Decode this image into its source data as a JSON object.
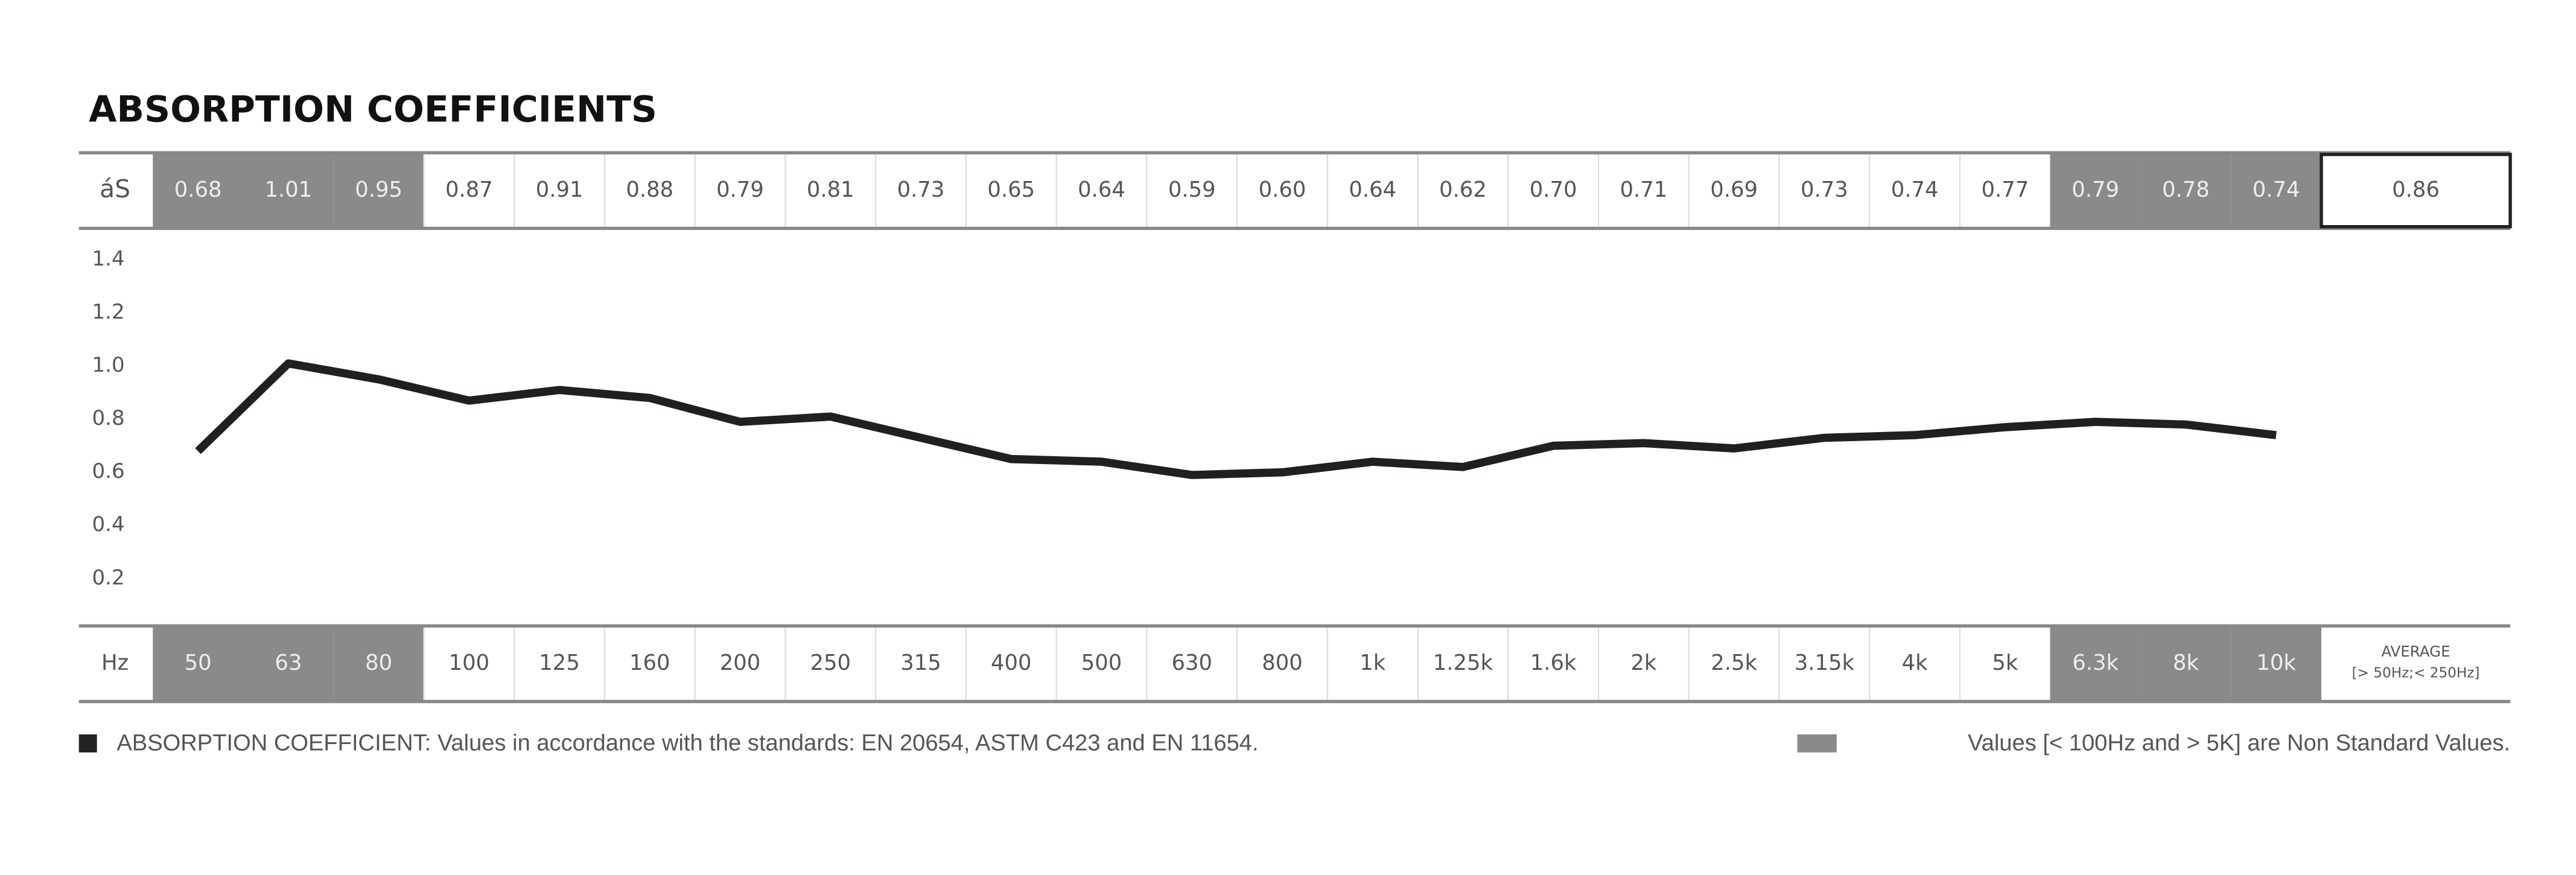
{
  "chart_data": {
    "type": "line",
    "title": "ABSORPTION COEFFICIENTS",
    "value_row_label": "áS",
    "category_row_label": "Hz",
    "categories": [
      "50",
      "63",
      "80",
      "100",
      "125",
      "160",
      "200",
      "250",
      "315",
      "400",
      "500",
      "630",
      "800",
      "1k",
      "1.25k",
      "1.6k",
      "2k",
      "2.5k",
      "3.15k",
      "4k",
      "5k",
      "6.3k",
      "8k",
      "10k"
    ],
    "values": [
      0.68,
      1.01,
      0.95,
      0.87,
      0.91,
      0.88,
      0.79,
      0.81,
      0.73,
      0.65,
      0.64,
      0.59,
      0.6,
      0.64,
      0.62,
      0.7,
      0.71,
      0.69,
      0.73,
      0.74,
      0.77,
      0.79,
      0.78,
      0.74
    ],
    "value_labels": [
      "0.68",
      "1.01",
      "0.95",
      "0.87",
      "0.91",
      "0.88",
      "0.79",
      "0.81",
      "0.73",
      "0.65",
      "0.64",
      "0.59",
      "0.60",
      "0.64",
      "0.62",
      "0.70",
      "0.71",
      "0.69",
      "0.73",
      "0.74",
      "0.77",
      "0.79",
      "0.78",
      "0.74"
    ],
    "average": {
      "value": 0.86,
      "value_label": "0.86",
      "label": "AVERAGE",
      "sublabel": "[> 50Hz;< 250Hz]"
    },
    "color": "#231f20",
    "shade_color": "#8a8a8a",
    "ylim": [
      0,
      1.5
    ],
    "yticks": [
      0.2,
      0.4,
      0.6,
      0.8,
      {
        "value": 1,
        "label": "1.0"
      },
      1.2,
      1.4
    ],
    "notes": [
      "ABSORPTION COEFFICIENT: Values in accordance with the standards: EN 20654, ASTM C423 and EN 11654.",
      "Values [< 100Hz and > 5K] are Non Standard Values."
    ]
  }
}
